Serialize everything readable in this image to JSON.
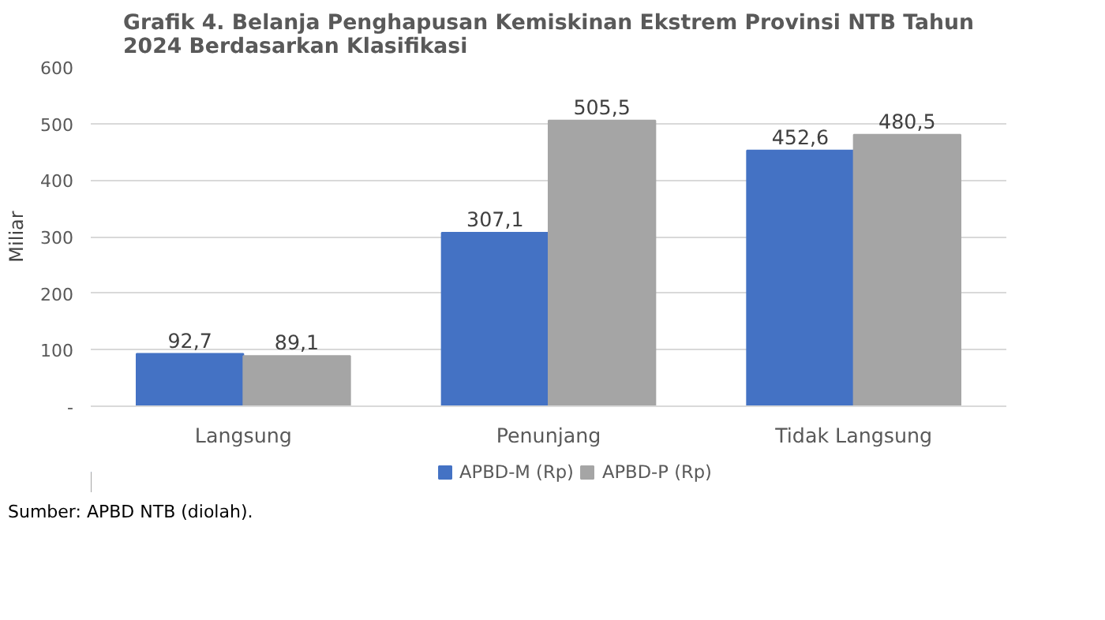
{
  "chart_data": {
    "type": "bar",
    "title": "Grafik 4. Belanja Penghapusan Kemiskinan Ekstrem Provinsi NTB Tahun 2024 Berdasarkan Klasifikasi",
    "ylabel": "Miliar",
    "categories": [
      "Langsung",
      "Penunjang",
      "Tidak Langsung"
    ],
    "series": [
      {
        "name": "APBD-M (Rp)",
        "color": "#4472c4",
        "values": [
          92.7,
          307.1,
          452.6
        ],
        "value_labels": [
          "92,7",
          "307,1",
          "452,6"
        ]
      },
      {
        "name": "APBD-P (Rp)",
        "color": "#a5a5a5",
        "values": [
          89.1,
          505.5,
          480.5
        ],
        "value_labels": [
          "89,1",
          "505,5",
          "480,5"
        ]
      }
    ],
    "ylim": [
      0,
      600
    ],
    "yticks": [
      {
        "value": 0,
        "label": "-"
      },
      100,
      200,
      300,
      400,
      500,
      600
    ],
    "grid": "y",
    "legend": "bottom",
    "annotations": [
      "Sumber: APBD NTB (diolah)."
    ]
  }
}
